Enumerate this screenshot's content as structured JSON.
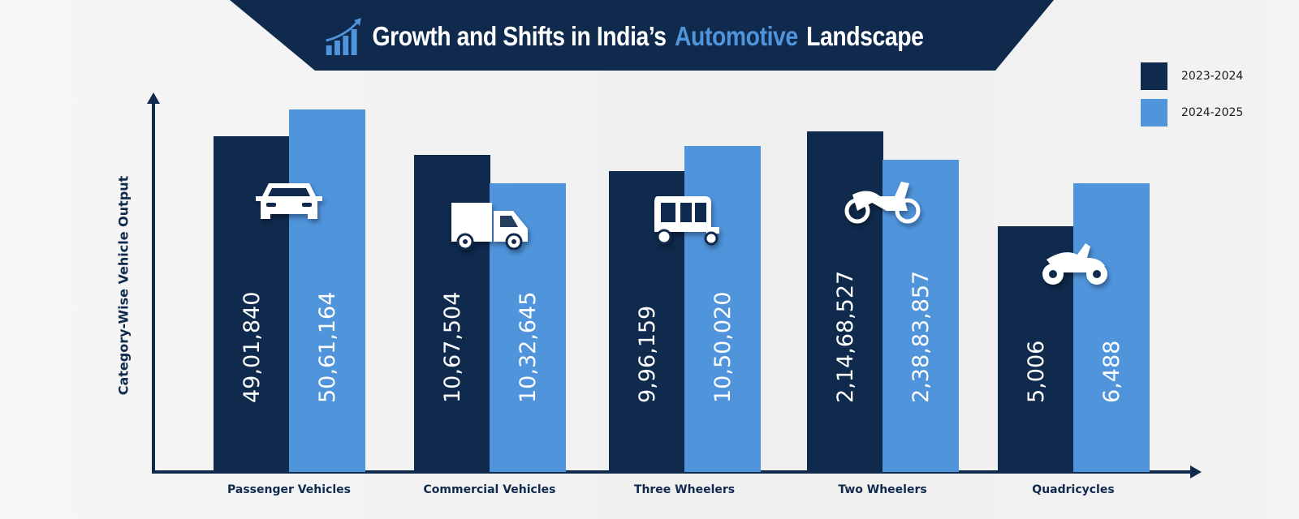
{
  "title": {
    "part1": "Growth and Shifts in India’s",
    "highlight": "Automotive",
    "part2": "Landscape",
    "icon": "growth-chart-icon"
  },
  "colors": {
    "series_2023": "#0f2a4d",
    "series_2024": "#5094dc",
    "banner": "#0f2a4d"
  },
  "chart_data": {
    "type": "bar",
    "title": "Growth and Shifts in India’s Automotive Landscape",
    "xlabel": "",
    "ylabel": "Category-Wise Vehicle Output",
    "categories": [
      "Passenger Vehicles",
      "Commercial Vehicles",
      "Three Wheelers",
      "Two Wheelers",
      "Quadricycles"
    ],
    "series": [
      {
        "name": "2023-2024",
        "values": [
          4901840,
          1067504,
          996159,
          21468527,
          5006
        ],
        "labels": [
          "49,01,840",
          "10,67,504",
          "9,96,159",
          "2,14,68,527",
          "5,006"
        ]
      },
      {
        "name": "2024-2025",
        "values": [
          5061164,
          1032645,
          1050020,
          23883857,
          6488
        ],
        "labels": [
          "50,61,164",
          "10,32,645",
          "10,50,020",
          "2,38,83,857",
          "6,488"
        ]
      }
    ],
    "icons": [
      "car-icon",
      "truck-icon",
      "auto-rickshaw-icon",
      "motorcycle-icon",
      "quad-bike-icon"
    ],
    "legend_position": "top-right",
    "grid": false
  }
}
